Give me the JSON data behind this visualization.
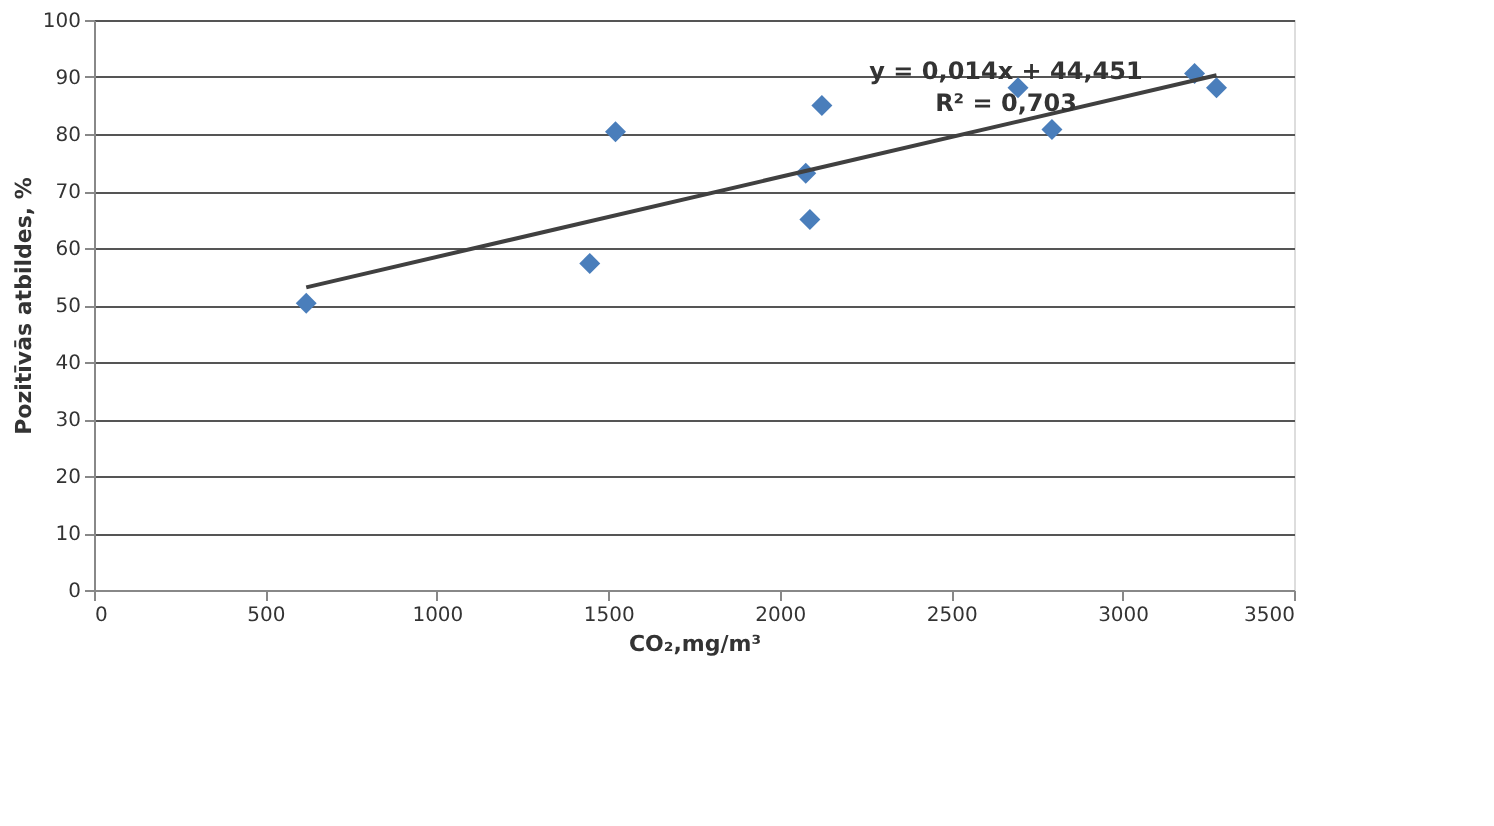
{
  "chart_data": {
    "type": "scatter",
    "xlabel": "CO₂,mg/m³",
    "ylabel": "Pozitīvās atbildes, %",
    "xlim": [
      0,
      3500
    ],
    "xticks": [
      0,
      500,
      1000,
      1500,
      2000,
      2500,
      3000,
      3500
    ],
    "ylim": [
      0,
      100
    ],
    "yticks": [
      0,
      10,
      20,
      30,
      40,
      50,
      60,
      70,
      80,
      90,
      100
    ],
    "grid": "y",
    "marker": "diamond",
    "series": [
      {
        "color": "#4a7ebb",
        "x": [
          619,
          1446,
          1521,
          2123,
          2076,
          2088,
          2695,
          2794,
          3210,
          3274
        ],
        "values": [
          50.3,
          57.3,
          80.4,
          85,
          73.1,
          65,
          88.1,
          80.8,
          90.6,
          88.1
        ]
      },
      {
        "type": "line",
        "marker": "none",
        "color": "#404040",
        "x": [
          619,
          3274
        ],
        "values": [
          53.1,
          90.3
        ]
      }
    ],
    "annotations": [
      "y = 0,014x + 44,451",
      "R² = 0,703"
    ]
  }
}
